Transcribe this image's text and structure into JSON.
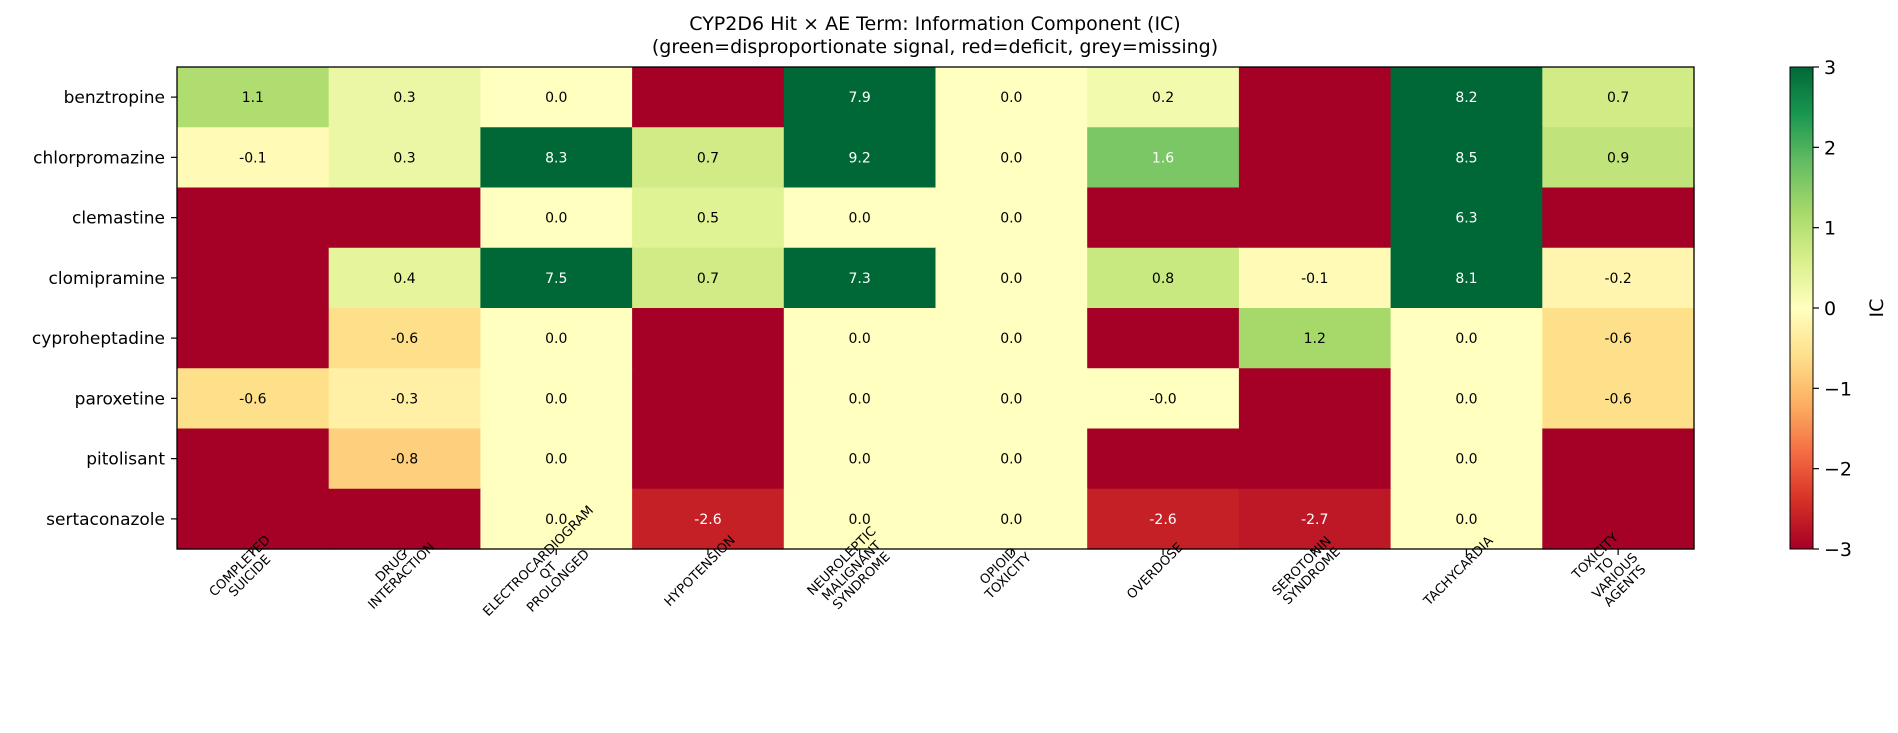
{
  "chart_data": {
    "type": "heatmap",
    "title": "CYP2D6 Hit × AE Term: Information Component (IC)",
    "subtitle": "(green=disproportionate signal, red=deficit, grey=missing)",
    "rows": [
      "benztropine",
      "chlorpromazine",
      "clemastine",
      "clomipramine",
      "cyproheptadine",
      "paroxetine",
      "pitolisant",
      "sertaconazole"
    ],
    "columns": [
      [
        "COMPLETED",
        "SUICIDE"
      ],
      [
        "DRUG",
        "INTERACTION"
      ],
      [
        "ELECTROCARDIOGRAM",
        "QT",
        "PROLONGED"
      ],
      [
        "HYPOTENSION"
      ],
      [
        "NEUROLEPTIC",
        "MALIGNANT",
        "SYNDROME"
      ],
      [
        "OPIOID",
        "TOXICITY"
      ],
      [
        "OVERDOSE"
      ],
      [
        "SEROTONIN",
        "SYNDROME"
      ],
      [
        "TACHYCARDIA"
      ],
      [
        "TOXICITY",
        "TO",
        "VARIOUS",
        "AGENTS"
      ]
    ],
    "values": [
      [
        1.1,
        0.3,
        0.0,
        null,
        7.9,
        0.0,
        0.2,
        null,
        8.2,
        0.7
      ],
      [
        -0.1,
        0.3,
        8.3,
        0.7,
        9.2,
        0.0,
        1.6,
        null,
        8.5,
        0.9
      ],
      [
        null,
        null,
        0.0,
        0.5,
        0.0,
        0.0,
        null,
        null,
        6.3,
        null
      ],
      [
        null,
        0.4,
        7.5,
        0.7,
        7.3,
        0.0,
        0.8,
        -0.1,
        8.1,
        -0.2
      ],
      [
        null,
        -0.6,
        0.0,
        null,
        0.0,
        0.0,
        null,
        1.2,
        0.0,
        -0.6
      ],
      [
        -0.6,
        -0.3,
        0.0,
        null,
        0.0,
        0.0,
        -0.0,
        null,
        0.0,
        -0.6
      ],
      [
        null,
        -0.8,
        0.0,
        null,
        0.0,
        0.0,
        null,
        null,
        0.0,
        null
      ],
      [
        null,
        null,
        0.0,
        -2.6,
        0.0,
        0.0,
        -2.6,
        -2.7,
        0.0,
        null
      ]
    ],
    "cell_labels": [
      [
        "1.1",
        "0.3",
        "0.0",
        "",
        "7.9",
        "0.0",
        "0.2",
        "",
        "8.2",
        "0.7"
      ],
      [
        "-0.1",
        "0.3",
        "8.3",
        "0.7",
        "9.2",
        "0.0",
        "1.6",
        "",
        "8.5",
        "0.9"
      ],
      [
        "",
        "",
        "0.0",
        "0.5",
        "0.0",
        "0.0",
        "",
        "",
        "6.3",
        ""
      ],
      [
        "",
        "0.4",
        "7.5",
        "0.7",
        "7.3",
        "0.0",
        "0.8",
        "-0.1",
        "8.1",
        "-0.2"
      ],
      [
        "",
        "-0.6",
        "0.0",
        "",
        "0.0",
        "0.0",
        "",
        "1.2",
        "0.0",
        "-0.6"
      ],
      [
        "-0.6",
        "-0.3",
        "0.0",
        "",
        "0.0",
        "0.0",
        "-0.0",
        "",
        "0.0",
        "-0.6"
      ],
      [
        "",
        "-0.8",
        "0.0",
        "",
        "0.0",
        "0.0",
        "",
        "",
        "0.0",
        ""
      ],
      [
        "",
        "",
        "0.0",
        "-2.6",
        "0.0",
        "0.0",
        "-2.6",
        "-2.7",
        "0.0",
        ""
      ]
    ],
    "colorbar": {
      "label": "IC",
      "min": -3,
      "max": 3,
      "ticks": [
        "−3",
        "−2",
        "−1",
        "0",
        "1",
        "2",
        "3"
      ],
      "tick_values": [
        -3,
        -2,
        -1,
        0,
        1,
        2,
        3
      ],
      "colormap": "RdYlGn"
    }
  }
}
